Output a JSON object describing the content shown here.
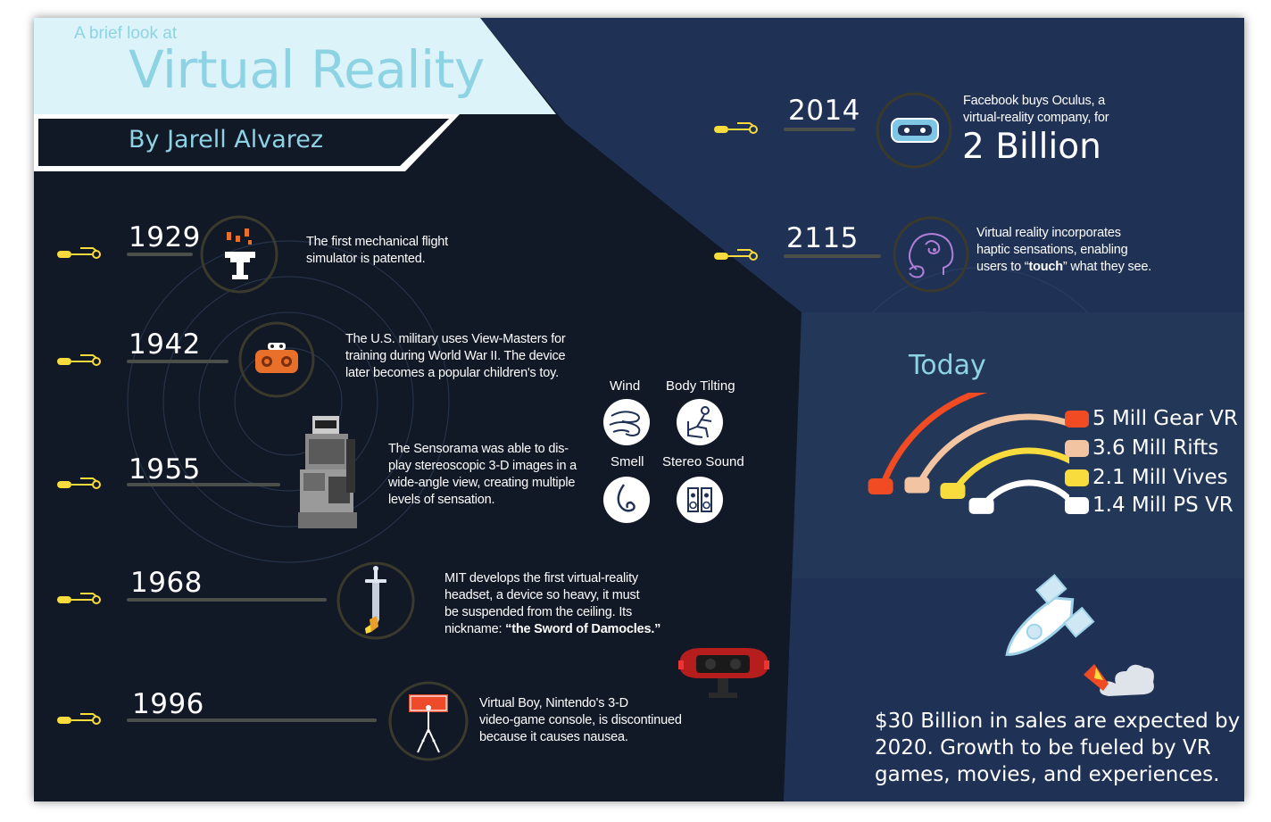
{
  "header": {
    "kicker": "A brief look at",
    "title": "Virtual Reality",
    "byline": "By Jarell Alvarez"
  },
  "timeline": [
    {
      "year": "1929",
      "icon": "flight-simulator-icon",
      "lines": [
        "The first mechanical flight",
        "simulator is patented."
      ]
    },
    {
      "year": "1942",
      "icon": "view-master-icon",
      "lines": [
        "The U.S. military uses View-Masters for",
        "training during World War II. The device",
        "later becomes a popular children's toy."
      ]
    },
    {
      "year": "1955",
      "icon": "sensorama-icon",
      "lines": [
        "The Sensorama was able to dis-",
        "play stereoscopic 3-D images in a",
        "wide-angle view, creating multiple",
        "levels of sensation."
      ]
    },
    {
      "year": "1968",
      "icon": "sword-icon",
      "lines": [
        "MIT develops the first virtual-reality",
        "headset, a device so heavy, it must",
        "be suspended from the ceiling. Its",
        "nickname:"
      ],
      "emphasis": "“the Sword of Damocles.”"
    },
    {
      "year": "1996",
      "icon": "virtual-boy-icon",
      "lines": [
        "Virtual Boy, Nintendo's 3-D",
        "video-game console, is discontinued",
        "because it causes nausea."
      ]
    }
  ],
  "sensations": {
    "wind": "Wind",
    "body_tilting": "Body Tilting",
    "smell": "Smell",
    "stereo_sound": "Stereo Sound"
  },
  "future": [
    {
      "year": "2014",
      "lines": [
        "Facebook buys Oculus, a",
        "virtual-reality company, for"
      ],
      "highlight": "2 Billion"
    },
    {
      "year": "2115",
      "lines": [
        "Virtual reality incorporates",
        "haptic sensations, enabling"
      ],
      "last_pre": "users to “",
      "last_bold": "touch",
      "last_post": "” what they see."
    }
  ],
  "today": {
    "title": "Today",
    "legend": [
      {
        "label": "5 Mill Gear VR",
        "color": "#F04B23"
      },
      {
        "label": "3.6 Mill Rifts",
        "color": "#F2C4A2"
      },
      {
        "label": "2.1 Mill Vives",
        "color": "#F8DB3C"
      },
      {
        "label": "1.4 Mill PS VR",
        "color": "#FFFFFF"
      }
    ]
  },
  "chart_data": {
    "type": "radial-bar",
    "categories": [
      "Gear VR",
      "Rifts",
      "Vives",
      "PS VR"
    ],
    "values": [
      5,
      3.6,
      2.1,
      1.4
    ],
    "unit": "Mill"
  },
  "forecast": {
    "lines": [
      "$30 Billion in sales are expected by",
      "2020. Growth to be fueled by VR",
      "games, movies, and experiences."
    ]
  },
  "colors": {
    "accent": "#F8DB3C",
    "title": "#8ED3E4",
    "dark_bg": "#111826",
    "panel_bg": "#1F3155"
  }
}
